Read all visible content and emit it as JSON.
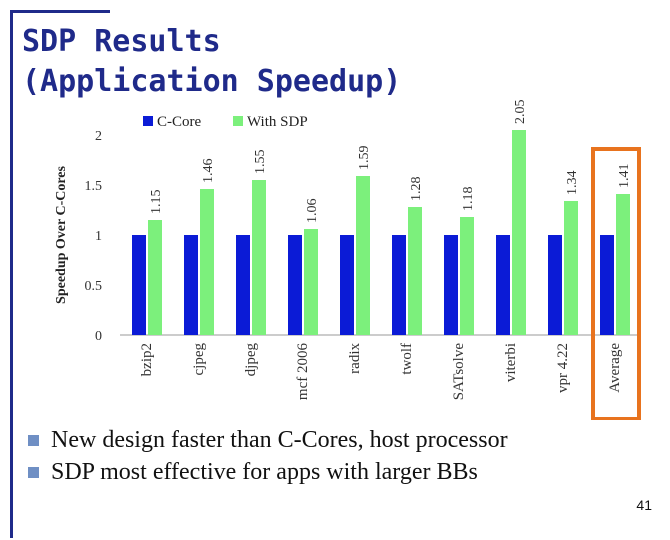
{
  "slide": {
    "title_line1": "SDP Results",
    "title_line2": "(Application Speedup)",
    "bullets": [
      "New design faster than C-Cores, host processor",
      "SDP most effective for apps with larger BBs"
    ],
    "page_number": "41"
  },
  "chart_data": {
    "type": "bar",
    "categories": [
      "bzip2",
      "cjpeg",
      "djpeg",
      "mcf 2006",
      "radix",
      "twolf",
      "SATsolve",
      "viterbi",
      "vpr 4.22",
      "Average"
    ],
    "series": [
      {
        "name": "C-Core",
        "values": [
          1,
          1,
          1,
          1,
          1,
          1,
          1,
          1,
          1,
          1
        ],
        "color": "#0b1bd6"
      },
      {
        "name": "With SDP",
        "values": [
          1.15,
          1.46,
          1.55,
          1.06,
          1.59,
          1.28,
          1.18,
          2.05,
          1.34,
          1.41
        ],
        "color": "#7cf07c"
      }
    ],
    "data_labels": [
      "1.15",
      "1.46",
      "1.55",
      "1.06",
      "1.59",
      "1.28",
      "1.18",
      "2.05",
      "1.34",
      "1.41"
    ],
    "ylabel": "Speedup Over C-Cores",
    "xlabel": "",
    "ylim": [
      0,
      2
    ],
    "yticks": [
      "0",
      "0.5",
      "1",
      "1.5",
      "2"
    ],
    "legend_position": "top",
    "highlight_category": "Average",
    "highlight_color": "#e8731e"
  }
}
